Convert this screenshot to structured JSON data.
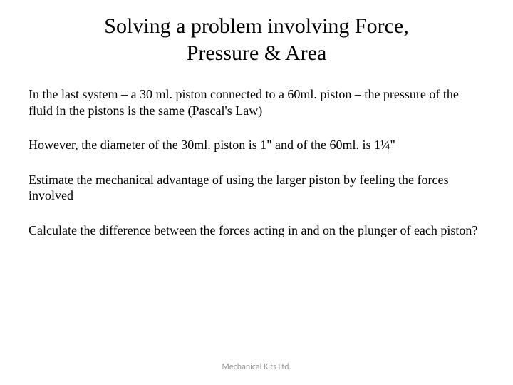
{
  "slide": {
    "title": "Solving a problem involving Force, Pressure & Area",
    "paragraphs": [
      "In the last system – a 30 ml. piston connected to a 60ml. piston – the pressure of the fluid in the pistons is the same (Pascal's Law)",
      "However, the diameter of the 30ml. piston is 1\" and of the 60ml. is 1¼\"",
      "Estimate the mechanical advantage of using the larger piston by feeling the forces involved",
      "Calculate the difference between the forces acting in and on the plunger of each piston?"
    ],
    "footer": "Mechanical Kits Ltd."
  },
  "style": {
    "background_color": "#ffffff",
    "text_color": "#000000",
    "footer_color": "#999999",
    "title_fontsize": 30,
    "body_fontsize": 18,
    "footer_fontsize": 12,
    "title_font": "Times New Roman",
    "body_font": "Times New Roman",
    "footer_font": "Calibri"
  }
}
